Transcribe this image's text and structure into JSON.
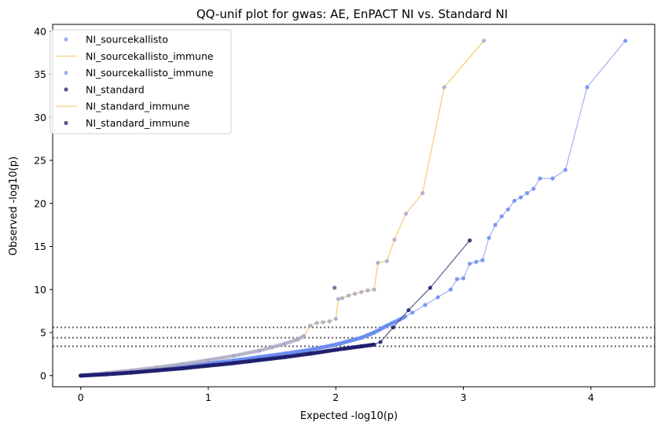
{
  "chart_data": {
    "type": "scatter",
    "title": "QQ-unif plot for gwas: AE, EnPACT NI vs. Standard NI",
    "xlabel": "Expected -log10(p)",
    "ylabel": "Observed -log10(p)",
    "xlim": [
      -0.22,
      4.5
    ],
    "ylim": [
      -1.3,
      40.8
    ],
    "xticks": [
      0,
      1,
      2,
      3,
      4
    ],
    "yticks": [
      0,
      5,
      10,
      15,
      20,
      25,
      30,
      35,
      40
    ],
    "hlines": [
      3.4,
      4.4,
      5.6
    ],
    "legend_position": "top-left",
    "legend": [
      {
        "label": "NI_sourcekallisto",
        "kind": "marker",
        "color": "#9fb2ee"
      },
      {
        "label": "NI_sourcekallisto_immune",
        "kind": "line",
        "color": "#f8c972"
      },
      {
        "label": "NI_sourcekallisto_immune",
        "kind": "marker",
        "color": "#9fb2ee"
      },
      {
        "label": "NI_standard",
        "kind": "marker",
        "color": "#5a5a8e"
      },
      {
        "label": "NI_standard_immune",
        "kind": "line",
        "color": "#f8c972"
      },
      {
        "label": "NI_standard_immune",
        "kind": "marker",
        "color": "#5a5a8e"
      }
    ],
    "series": [
      {
        "name": "NI_sourcekallisto",
        "role": "dense",
        "line_color": "#9fb2ee",
        "marker_color": "#6b8cf0",
        "x": [
          0,
          0.2,
          0.4,
          0.6,
          0.8,
          1.0,
          1.2,
          1.4,
          1.6,
          1.8,
          2.0,
          2.2,
          2.3,
          2.4,
          2.5,
          2.6,
          2.7,
          2.8,
          2.9,
          2.95,
          3.0,
          3.05,
          3.1,
          3.15,
          3.2,
          3.25,
          3.3,
          3.35,
          3.4,
          3.45,
          3.5,
          3.55,
          3.6,
          3.7,
          3.8,
          3.97,
          4.27
        ],
        "y": [
          0,
          0.2,
          0.45,
          0.75,
          1.05,
          1.4,
          1.75,
          2.15,
          2.55,
          3.0,
          3.6,
          4.4,
          5.0,
          5.8,
          6.5,
          7.3,
          8.2,
          9.1,
          10.0,
          11.2,
          11.3,
          13.0,
          13.2,
          13.4,
          16.0,
          17.5,
          18.5,
          19.3,
          20.3,
          20.7,
          21.2,
          21.7,
          22.9,
          22.9,
          23.9,
          33.5,
          38.9
        ]
      },
      {
        "name": "NI_sourcekallisto_immune",
        "role": "orange",
        "line_color": "#f8c972",
        "marker_color": "#a8a8c8",
        "x": [
          0,
          0.2,
          0.4,
          0.6,
          0.8,
          1.0,
          1.2,
          1.4,
          1.5,
          1.6,
          1.7,
          1.75,
          1.8,
          1.85,
          1.9,
          1.95,
          2.0,
          2.02,
          2.05,
          2.1,
          2.15,
          2.2,
          2.25,
          2.3,
          2.33,
          2.4,
          2.46,
          2.55,
          2.68,
          2.85,
          3.16
        ],
        "y": [
          0,
          0.3,
          0.6,
          0.95,
          1.35,
          1.8,
          2.3,
          2.9,
          3.3,
          3.7,
          4.2,
          4.6,
          5.8,
          6.1,
          6.2,
          6.3,
          6.6,
          8.9,
          9.0,
          9.3,
          9.5,
          9.7,
          9.9,
          10.0,
          13.1,
          13.3,
          15.8,
          18.8,
          21.2,
          33.5,
          38.9
        ]
      },
      {
        "name": "NI_standard",
        "role": "dark",
        "line_color": "#5a5a8e",
        "marker_color": "#1f1f6e",
        "x": [
          0,
          0.2,
          0.4,
          0.6,
          0.8,
          1.0,
          1.2,
          1.4,
          1.6,
          1.8,
          2.0,
          2.2,
          2.3,
          2.35,
          2.45,
          2.57,
          2.74,
          3.05
        ],
        "y": [
          0,
          0.15,
          0.35,
          0.6,
          0.85,
          1.15,
          1.45,
          1.8,
          2.15,
          2.55,
          3.0,
          3.4,
          3.6,
          3.9,
          5.6,
          7.6,
          10.2,
          15.7
        ]
      },
      {
        "name": "NI_standard_immune",
        "role": "outlier",
        "line_color": "#f8c972",
        "marker_color": "#5a5a8e",
        "x": [
          1.99
        ],
        "y": [
          10.2
        ]
      }
    ]
  }
}
